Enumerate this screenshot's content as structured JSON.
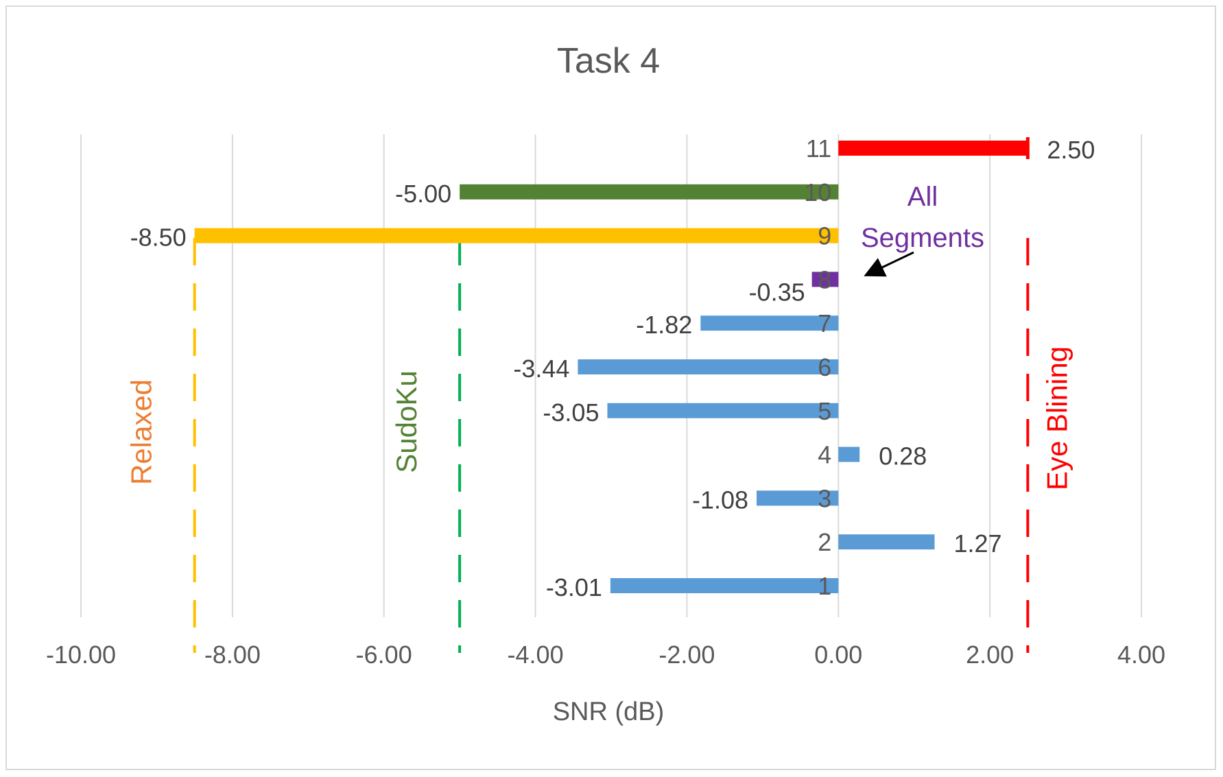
{
  "chart_data": {
    "type": "bar",
    "orientation": "horizontal",
    "title": "Task 4",
    "xlabel": "SNR (dB)",
    "ylabel": "",
    "xlim": [
      -10,
      4
    ],
    "x_ticks": [
      -10,
      -8,
      -6,
      -4,
      -2,
      0,
      2,
      4
    ],
    "x_tick_labels": [
      "-10.00",
      "-8.00",
      "-6.00",
      "-4.00",
      "-2.00",
      "0.00",
      "2.00",
      "4.00"
    ],
    "grid": "vertical",
    "categories": [
      "1",
      "2",
      "3",
      "4",
      "5",
      "6",
      "7",
      "8",
      "9",
      "10",
      "11"
    ],
    "values": [
      -3.01,
      1.27,
      -1.08,
      0.28,
      -3.05,
      -3.44,
      -1.82,
      -0.35,
      -8.5,
      -5.0,
      2.5
    ],
    "value_labels": [
      "-3.01",
      "1.27",
      "-1.08",
      "0.28",
      "-3.05",
      "-3.44",
      "-1.82",
      "-0.35",
      "-8.50",
      "-5.00",
      "2.50"
    ],
    "bar_colors": [
      "#5b9bd5",
      "#5b9bd5",
      "#5b9bd5",
      "#5b9bd5",
      "#5b9bd5",
      "#5b9bd5",
      "#5b9bd5",
      "#7030a0",
      "#ffc000",
      "#548235",
      "#ff0000"
    ],
    "reference_lines": [
      {
        "label": "Relaxed",
        "x": -8.5,
        "color": "#ffc000",
        "label_color": "#ed7d31"
      },
      {
        "label": "SudoKu",
        "x": -5.0,
        "color": "#00b050",
        "label_color": "#548235"
      },
      {
        "label": "Eye Blining",
        "x": 2.5,
        "color": "#ff0000",
        "label_color": "#ff0000"
      }
    ],
    "annotation": {
      "text_line1": "All",
      "text_line2": "Segments",
      "color": "#7030a0",
      "points_to": "8"
    }
  }
}
